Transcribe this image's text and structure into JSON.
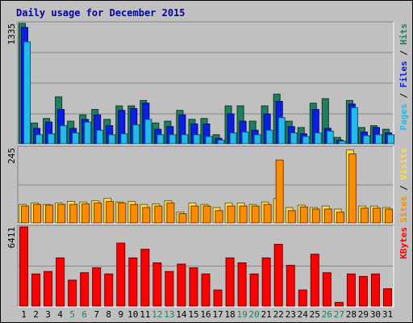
{
  "chart_data": [
    {
      "type": "bar",
      "title": "Daily usage for December 2015",
      "ylabel_parts": [
        "Pages",
        "Files",
        "Hits"
      ],
      "ylabel_separator": " / ",
      "ymax_label": "1335",
      "ylim": [
        0,
        1335
      ],
      "categories": [
        "1",
        "2",
        "3",
        "4",
        "5",
        "6",
        "7",
        "8",
        "9",
        "10",
        "11",
        "12",
        "13",
        "14",
        "15",
        "16",
        "17",
        "18",
        "19",
        "20",
        "21",
        "22",
        "23",
        "24",
        "25",
        "26",
        "27",
        "28",
        "29",
        "30",
        "31"
      ],
      "weekend_days": [
        "5",
        "6",
        "12",
        "13",
        "19",
        "20",
        "26",
        "27"
      ],
      "series": [
        {
          "name": "Hits",
          "color": "#1f7f5f",
          "values": [
            1335,
            230,
            280,
            520,
            250,
            320,
            380,
            270,
            420,
            420,
            480,
            230,
            250,
            370,
            270,
            280,
            100,
            420,
            420,
            250,
            420,
            550,
            250,
            180,
            450,
            500,
            70,
            480,
            180,
            200,
            160
          ]
        },
        {
          "name": "Files",
          "color": "#0a1ee6",
          "values": [
            1290,
            170,
            240,
            380,
            170,
            270,
            320,
            200,
            370,
            390,
            450,
            160,
            190,
            320,
            220,
            220,
            60,
            330,
            250,
            150,
            330,
            470,
            190,
            110,
            380,
            170,
            40,
            440,
            130,
            180,
            120
          ]
        },
        {
          "name": "Pages",
          "color": "#22bbee",
          "values": [
            1130,
            100,
            110,
            200,
            120,
            240,
            150,
            100,
            110,
            210,
            270,
            100,
            100,
            100,
            100,
            80,
            40,
            120,
            130,
            100,
            150,
            290,
            120,
            80,
            120,
            140,
            30,
            400,
            90,
            100,
            100
          ]
        }
      ]
    },
    {
      "type": "bar",
      "ylabel_parts": [
        "Sites",
        "Visits"
      ],
      "ylabel_separator": " / ",
      "ymax_label": "245",
      "ylim": [
        0,
        245
      ],
      "categories": [
        "1",
        "2",
        "3",
        "4",
        "5",
        "6",
        "7",
        "8",
        "9",
        "10",
        "11",
        "12",
        "13",
        "14",
        "15",
        "16",
        "17",
        "18",
        "19",
        "20",
        "21",
        "22",
        "23",
        "24",
        "25",
        "26",
        "27",
        "28",
        "29",
        "30",
        "31"
      ],
      "series": [
        {
          "name": "Visits",
          "color": "#ffde4d",
          "values": [
            60,
            65,
            60,
            65,
            70,
            68,
            72,
            80,
            68,
            70,
            60,
            62,
            72,
            35,
            65,
            60,
            50,
            65,
            65,
            60,
            68,
            80,
            50,
            58,
            50,
            55,
            45,
            238,
            55,
            55,
            50
          ]
        },
        {
          "name": "Sites",
          "color": "#ff8c00",
          "values": [
            55,
            60,
            58,
            60,
            60,
            62,
            65,
            70,
            65,
            60,
            50,
            55,
            65,
            30,
            55,
            55,
            40,
            55,
            55,
            55,
            60,
            205,
            40,
            52,
            45,
            45,
            35,
            225,
            48,
            48,
            45
          ]
        }
      ]
    },
    {
      "type": "bar",
      "ylabel_parts": [
        "KBytes"
      ],
      "ylabel_separator": "",
      "ymax_label": "6411",
      "ylim": [
        0,
        6411
      ],
      "categories": [
        "1",
        "2",
        "3",
        "4",
        "5",
        "6",
        "7",
        "8",
        "9",
        "10",
        "11",
        "12",
        "13",
        "14",
        "15",
        "16",
        "17",
        "18",
        "19",
        "20",
        "21",
        "22",
        "23",
        "24",
        "25",
        "26",
        "27",
        "28",
        "29",
        "30",
        "31"
      ],
      "series": [
        {
          "name": "KBytes",
          "color": "#ff0000",
          "values": [
            6411,
            2600,
            2800,
            3900,
            2100,
            2700,
            3100,
            2600,
            5100,
            3900,
            4600,
            3500,
            2800,
            3400,
            3100,
            2600,
            1300,
            3900,
            3500,
            2600,
            3900,
            5000,
            3300,
            1300,
            4200,
            2700,
            300,
            2600,
            2400,
            2600,
            1400
          ]
        }
      ]
    }
  ]
}
